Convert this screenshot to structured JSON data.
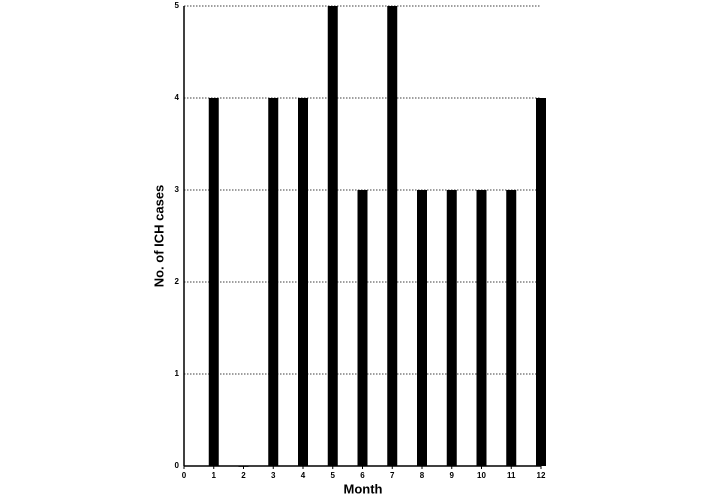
{
  "chart_data": {
    "type": "bar",
    "x": [
      1,
      2,
      3,
      4,
      5,
      6,
      7,
      8,
      9,
      10,
      11,
      12
    ],
    "values": [
      4,
      0,
      4,
      4,
      5,
      3,
      5,
      3,
      3,
      3,
      3,
      4
    ],
    "color": "#000000",
    "xlabel": "Month",
    "ylabel": "No. of ICH cases",
    "xlim": [
      0,
      12
    ],
    "xticks": [
      0,
      1,
      2,
      3,
      4,
      5,
      6,
      7,
      8,
      9,
      10,
      11,
      12
    ],
    "ylim": [
      0,
      5
    ],
    "yticks": [
      0,
      1,
      2,
      3,
      4,
      5
    ],
    "grid": true
  }
}
